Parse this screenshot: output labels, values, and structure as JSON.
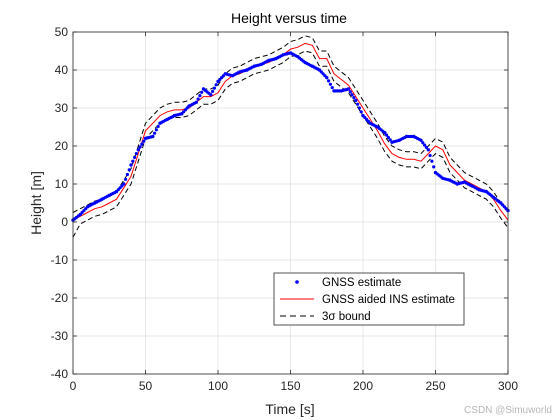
{
  "chart_data": {
    "type": "line",
    "title": "Height versus time",
    "xlabel": "Time [s]",
    "ylabel": "Height [m]",
    "xlim": [
      0,
      300
    ],
    "ylim": [
      -40,
      50
    ],
    "xticks": [
      0,
      50,
      100,
      150,
      200,
      250,
      300
    ],
    "yticks": [
      -40,
      -30,
      -20,
      -10,
      0,
      10,
      20,
      30,
      40,
      50
    ],
    "grid": true,
    "legend_position": "bottom-right",
    "colors": {
      "gnss": "#0000ff",
      "ins": "#ff0000",
      "bound": "#000000"
    },
    "series": [
      {
        "name": "GNSS estimate",
        "style": "dots",
        "x": [
          0,
          5,
          10,
          15,
          20,
          25,
          30,
          35,
          40,
          45,
          50,
          55,
          60,
          65,
          70,
          75,
          80,
          85,
          90,
          95,
          100,
          105,
          110,
          115,
          120,
          125,
          130,
          135,
          140,
          145,
          150,
          155,
          160,
          165,
          170,
          175,
          180,
          185,
          190,
          195,
          200,
          205,
          210,
          215,
          220,
          225,
          230,
          235,
          240,
          245,
          250,
          255,
          260,
          265,
          270,
          275,
          280,
          285,
          290,
          295,
          300
        ],
        "y": [
          0.5,
          2,
          4,
          5,
          6,
          7,
          8,
          10,
          15,
          19,
          22,
          22.5,
          26,
          27,
          28,
          28.5,
          30.5,
          31.5,
          35,
          33.5,
          37,
          39,
          38.5,
          39.5,
          40,
          41,
          41.5,
          42.5,
          43,
          44,
          44.5,
          43.5,
          42,
          41,
          40,
          38,
          34.5,
          34.5,
          35,
          32,
          28,
          26,
          25,
          23.5,
          21,
          21.5,
          22.5,
          22.5,
          21.5,
          19,
          13,
          11.5,
          11,
          10,
          10.5,
          9.5,
          8.5,
          8,
          6.5,
          5,
          3
        ]
      },
      {
        "name": "GNSS aided INS estimate",
        "style": "solid",
        "x": [
          0,
          5,
          10,
          15,
          20,
          25,
          30,
          35,
          40,
          45,
          50,
          55,
          60,
          65,
          70,
          75,
          80,
          85,
          90,
          95,
          100,
          105,
          110,
          115,
          120,
          125,
          130,
          135,
          140,
          145,
          150,
          155,
          160,
          165,
          170,
          175,
          180,
          185,
          190,
          195,
          200,
          205,
          210,
          215,
          220,
          225,
          230,
          235,
          240,
          245,
          250,
          255,
          260,
          265,
          270,
          275,
          280,
          285,
          290,
          295,
          300
        ],
        "y": [
          0.5,
          1.5,
          2.5,
          3.5,
          4,
          5,
          6,
          9,
          12,
          18,
          24,
          26,
          28,
          29,
          29.5,
          29.5,
          30,
          31.5,
          33,
          33,
          34,
          37,
          38.5,
          39,
          40,
          41,
          41.5,
          42,
          43,
          44,
          45.5,
          46,
          47,
          46.5,
          43,
          43,
          39,
          37.5,
          36,
          33,
          30,
          27,
          24,
          20.5,
          18,
          17,
          16.5,
          16.5,
          16,
          18,
          20,
          19,
          15,
          13,
          11,
          10,
          9,
          8,
          6,
          3,
          0.5
        ]
      },
      {
        "name": "3σ bound",
        "style": "dashed",
        "x": [
          0,
          5,
          10,
          15,
          20,
          25,
          30,
          35,
          40,
          45,
          50,
          55,
          60,
          65,
          70,
          75,
          80,
          85,
          90,
          95,
          100,
          105,
          110,
          115,
          120,
          125,
          130,
          135,
          140,
          145,
          150,
          155,
          160,
          165,
          170,
          175,
          180,
          185,
          190,
          195,
          200,
          205,
          210,
          215,
          220,
          225,
          230,
          235,
          240,
          245,
          250,
          255,
          260,
          265,
          270,
          275,
          280,
          285,
          290,
          295,
          300
        ],
        "y_upper": [
          2.5,
          3.5,
          4.5,
          5.5,
          6,
          7,
          8,
          11,
          14,
          20,
          26,
          28,
          30,
          31,
          31.5,
          31.5,
          32,
          33.5,
          35,
          35,
          36,
          39,
          40.5,
          41,
          42,
          43,
          43.5,
          44,
          45,
          46,
          47.5,
          48,
          49,
          48.5,
          45,
          45,
          41,
          39.5,
          38,
          35,
          32,
          29,
          26,
          22.5,
          20,
          19,
          18.5,
          18.5,
          18,
          20,
          22,
          21,
          17,
          15,
          13,
          12,
          11,
          10,
          8,
          5,
          2.5
        ],
        "y_lower": [
          -4,
          -0.5,
          0.5,
          1.5,
          2,
          3,
          4,
          7,
          10,
          16,
          22,
          24,
          26,
          27,
          27.5,
          27.5,
          28,
          29.5,
          31,
          31,
          32,
          35,
          36.5,
          37,
          38,
          39,
          39.5,
          40,
          41,
          42,
          43.5,
          44,
          45,
          44.5,
          41,
          41,
          37,
          35.5,
          34,
          31,
          28,
          25,
          22,
          18.5,
          16,
          15,
          14.5,
          14.5,
          14,
          16,
          18,
          17,
          13,
          11,
          9,
          8,
          7,
          6,
          4,
          1,
          -1.5
        ]
      }
    ]
  },
  "watermark": "CSDN @Simuworld"
}
